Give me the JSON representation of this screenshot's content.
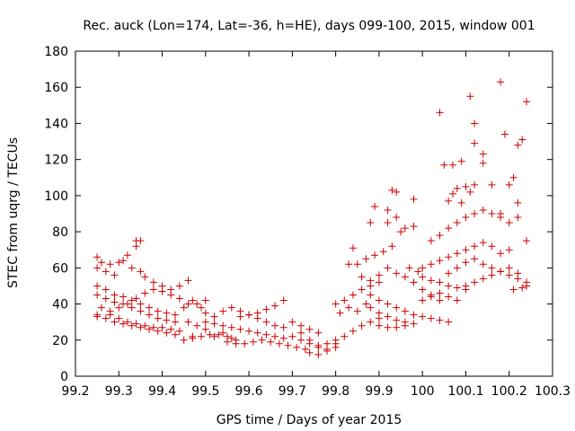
{
  "colors": {
    "series": "#cc0000",
    "axis": "#000000",
    "grid": "#999999"
  },
  "chart_data": {
    "type": "scatter",
    "title": "Rec. auck (Lon=174, Lat=-36, h=HE), days 099-100, 2015, window 001",
    "xlabel": "GPS time / Days of year 2015",
    "ylabel": "STEC from uqrg / TECUs",
    "xlim": [
      99.2,
      100.3
    ],
    "ylim": [
      0,
      180
    ],
    "xticks": [
      99.2,
      99.3,
      99.4,
      99.5,
      99.6,
      99.7,
      99.8,
      99.9,
      100,
      100.1,
      100.2,
      100.3
    ],
    "xtick_labels": [
      "99.2",
      "99.3",
      "99.4",
      "99.5",
      "99.6",
      "99.7",
      "99.8",
      "99.9",
      "100",
      "100.1",
      "100.2",
      "100.3"
    ],
    "yticks": [
      0,
      20,
      40,
      60,
      80,
      100,
      120,
      140,
      160,
      180
    ],
    "ytick_labels": [
      "0",
      "20",
      "40",
      "60",
      "80",
      "100",
      "120",
      "140",
      "160",
      "180"
    ],
    "grid": false,
    "marker": "+",
    "series": [
      {
        "points": [
          [
            99.25,
            66
          ],
          [
            99.26,
            63
          ],
          [
            99.28,
            62
          ],
          [
            99.3,
            63
          ],
          [
            99.31,
            64
          ],
          [
            99.32,
            67
          ],
          [
            99.34,
            75
          ],
          [
            99.35,
            75
          ],
          [
            99.34,
            72
          ],
          [
            99.25,
            60
          ],
          [
            99.27,
            58
          ],
          [
            99.29,
            56
          ],
          [
            99.33,
            60
          ],
          [
            99.35,
            58
          ],
          [
            99.36,
            55
          ],
          [
            99.38,
            52
          ],
          [
            99.4,
            50
          ],
          [
            99.42,
            48
          ],
          [
            99.44,
            50
          ],
          [
            99.46,
            53
          ],
          [
            99.25,
            50
          ],
          [
            99.27,
            48
          ],
          [
            99.29,
            45
          ],
          [
            99.31,
            44
          ],
          [
            99.33,
            42
          ],
          [
            99.35,
            40
          ],
          [
            99.37,
            38
          ],
          [
            99.39,
            36
          ],
          [
            99.41,
            35
          ],
          [
            99.43,
            34
          ],
          [
            99.25,
            45
          ],
          [
            99.27,
            43
          ],
          [
            99.29,
            41
          ],
          [
            99.31,
            40
          ],
          [
            99.33,
            38
          ],
          [
            99.35,
            36
          ],
          [
            99.37,
            34
          ],
          [
            99.39,
            32
          ],
          [
            99.41,
            31
          ],
          [
            99.43,
            30
          ],
          [
            99.25,
            33
          ],
          [
            99.27,
            32
          ],
          [
            99.29,
            30
          ],
          [
            99.31,
            29
          ],
          [
            99.33,
            28
          ],
          [
            99.35,
            27
          ],
          [
            99.37,
            26
          ],
          [
            99.39,
            25
          ],
          [
            99.41,
            24
          ],
          [
            99.43,
            23
          ],
          [
            99.25,
            34
          ],
          [
            99.28,
            36
          ],
          [
            99.3,
            38
          ],
          [
            99.32,
            40
          ],
          [
            99.34,
            43
          ],
          [
            99.36,
            46
          ],
          [
            99.38,
            48
          ],
          [
            99.4,
            47
          ],
          [
            99.42,
            45
          ],
          [
            99.44,
            43
          ],
          [
            99.26,
            38
          ],
          [
            99.28,
            34
          ],
          [
            99.3,
            32
          ],
          [
            99.32,
            30
          ],
          [
            99.34,
            29
          ],
          [
            99.36,
            28
          ],
          [
            99.38,
            27
          ],
          [
            99.4,
            27
          ],
          [
            99.42,
            26
          ],
          [
            99.44,
            25
          ],
          [
            99.45,
            38
          ],
          [
            99.46,
            40
          ],
          [
            99.47,
            42
          ],
          [
            99.48,
            40
          ],
          [
            99.49,
            38
          ],
          [
            99.5,
            42
          ],
          [
            99.46,
            30
          ],
          [
            99.48,
            28
          ],
          [
            99.5,
            26
          ],
          [
            99.47,
            22
          ],
          [
            99.45,
            20
          ],
          [
            99.47,
            21
          ],
          [
            99.49,
            22
          ],
          [
            99.51,
            23
          ],
          [
            99.52,
            22
          ],
          [
            99.53,
            23
          ],
          [
            99.54,
            24
          ],
          [
            99.55,
            22
          ],
          [
            99.56,
            21
          ],
          [
            99.57,
            20
          ],
          [
            99.5,
            35
          ],
          [
            99.52,
            33
          ],
          [
            99.54,
            36
          ],
          [
            99.56,
            38
          ],
          [
            99.58,
            36
          ],
          [
            99.6,
            34
          ],
          [
            99.62,
            32
          ],
          [
            99.64,
            30
          ],
          [
            99.66,
            28
          ],
          [
            99.68,
            27
          ],
          [
            99.5,
            30
          ],
          [
            99.52,
            29
          ],
          [
            99.54,
            28
          ],
          [
            99.56,
            27
          ],
          [
            99.58,
            26
          ],
          [
            99.6,
            25
          ],
          [
            99.62,
            24
          ],
          [
            99.64,
            23
          ],
          [
            99.66,
            22
          ],
          [
            99.68,
            21
          ],
          [
            99.55,
            19
          ],
          [
            99.57,
            18
          ],
          [
            99.59,
            18
          ],
          [
            99.61,
            19
          ],
          [
            99.63,
            20
          ],
          [
            99.65,
            19
          ],
          [
            99.67,
            18
          ],
          [
            99.69,
            17
          ],
          [
            99.71,
            16
          ],
          [
            99.73,
            15
          ],
          [
            99.58,
            33
          ],
          [
            99.6,
            34
          ],
          [
            99.62,
            35
          ],
          [
            99.64,
            37
          ],
          [
            99.66,
            39
          ],
          [
            99.68,
            42
          ],
          [
            99.7,
            30
          ],
          [
            99.72,
            28
          ],
          [
            99.74,
            26
          ],
          [
            99.76,
            24
          ],
          [
            99.7,
            22
          ],
          [
            99.72,
            20
          ],
          [
            99.74,
            18
          ],
          [
            99.76,
            16
          ],
          [
            99.78,
            15
          ],
          [
            99.8,
            16
          ],
          [
            99.74,
            13
          ],
          [
            99.76,
            12
          ],
          [
            99.78,
            14
          ],
          [
            99.8,
            18
          ],
          [
            99.72,
            24
          ],
          [
            99.74,
            20
          ],
          [
            99.76,
            17
          ],
          [
            99.78,
            18
          ],
          [
            99.8,
            20
          ],
          [
            99.82,
            22
          ],
          [
            99.84,
            25
          ],
          [
            99.86,
            28
          ],
          [
            99.88,
            30
          ],
          [
            99.9,
            32
          ],
          [
            99.8,
            40
          ],
          [
            99.82,
            42
          ],
          [
            99.84,
            45
          ],
          [
            99.86,
            48
          ],
          [
            99.88,
            50
          ],
          [
            99.9,
            52
          ],
          [
            99.81,
            35
          ],
          [
            99.83,
            38
          ],
          [
            99.85,
            36
          ],
          [
            99.87,
            40
          ],
          [
            99.83,
            62
          ],
          [
            99.85,
            62
          ],
          [
            99.87,
            65
          ],
          [
            99.89,
            67
          ],
          [
            99.91,
            69
          ],
          [
            99.93,
            72
          ],
          [
            99.84,
            71
          ],
          [
            99.88,
            85
          ],
          [
            99.89,
            94
          ],
          [
            99.92,
            92
          ],
          [
            99.92,
            85
          ],
          [
            99.94,
            88
          ],
          [
            99.96,
            82
          ],
          [
            99.98,
            83
          ],
          [
            99.95,
            80
          ],
          [
            99.93,
            103
          ],
          [
            99.94,
            102
          ],
          [
            99.98,
            98
          ],
          [
            99.97,
            60
          ],
          [
            99.99,
            58
          ],
          [
            99.86,
            55
          ],
          [
            99.88,
            53
          ],
          [
            99.9,
            56
          ],
          [
            99.92,
            60
          ],
          [
            99.94,
            57
          ],
          [
            99.96,
            55
          ],
          [
            99.98,
            52
          ],
          [
            100.0,
            48
          ],
          [
            100.02,
            45
          ],
          [
            100.04,
            42
          ],
          [
            99.88,
            45
          ],
          [
            99.9,
            42
          ],
          [
            99.92,
            40
          ],
          [
            99.94,
            38
          ],
          [
            99.96,
            36
          ],
          [
            99.98,
            34
          ],
          [
            100.0,
            33
          ],
          [
            100.02,
            32
          ],
          [
            100.04,
            31
          ],
          [
            100.06,
            30
          ],
          [
            99.88,
            38
          ],
          [
            99.9,
            35
          ],
          [
            99.92,
            33
          ],
          [
            99.94,
            31
          ],
          [
            99.96,
            30
          ],
          [
            99.98,
            29
          ],
          [
            99.9,
            28
          ],
          [
            99.92,
            27
          ],
          [
            99.94,
            27
          ],
          [
            99.96,
            28
          ],
          [
            100.0,
            60
          ],
          [
            100.02,
            62
          ],
          [
            100.04,
            64
          ],
          [
            100.06,
            66
          ],
          [
            100.08,
            68
          ],
          [
            100.1,
            70
          ],
          [
            100.12,
            72
          ],
          [
            100.14,
            74
          ],
          [
            100.16,
            72
          ],
          [
            100.18,
            68
          ],
          [
            100.0,
            55
          ],
          [
            100.02,
            53
          ],
          [
            100.04,
            52
          ],
          [
            100.06,
            50
          ],
          [
            100.08,
            49
          ],
          [
            100.1,
            50
          ],
          [
            100.12,
            52
          ],
          [
            100.14,
            54
          ],
          [
            100.16,
            56
          ],
          [
            100.18,
            58
          ],
          [
            100.02,
            75
          ],
          [
            100.04,
            78
          ],
          [
            100.06,
            82
          ],
          [
            100.08,
            85
          ],
          [
            100.1,
            88
          ],
          [
            100.12,
            90
          ],
          [
            100.14,
            92
          ],
          [
            100.16,
            90
          ],
          [
            100.18,
            88
          ],
          [
            100.2,
            85
          ],
          [
            100.04,
            146
          ],
          [
            100.05,
            117
          ],
          [
            100.07,
            117
          ],
          [
            100.09,
            119
          ],
          [
            100.11,
            155
          ],
          [
            100.12,
            140
          ],
          [
            100.12,
            129
          ],
          [
            100.14,
            123
          ],
          [
            100.14,
            118
          ],
          [
            100.18,
            163
          ],
          [
            100.19,
            134
          ],
          [
            100.21,
            110
          ],
          [
            100.22,
            128
          ],
          [
            100.23,
            131
          ],
          [
            100.24,
            152
          ],
          [
            100.24,
            75
          ],
          [
            100.22,
            96
          ],
          [
            100.2,
            106
          ],
          [
            100.22,
            88
          ],
          [
            100.24,
            50
          ],
          [
            100.08,
            104
          ],
          [
            100.1,
            105
          ],
          [
            100.11,
            102
          ],
          [
            100.12,
            106
          ],
          [
            100.09,
            96
          ],
          [
            100.06,
            97
          ],
          [
            100.07,
            101
          ],
          [
            100.16,
            106
          ],
          [
            100.18,
            90
          ],
          [
            100.2,
            70
          ],
          [
            100.06,
            57
          ],
          [
            100.08,
            60
          ],
          [
            100.1,
            63
          ],
          [
            100.12,
            65
          ],
          [
            100.14,
            62
          ],
          [
            100.16,
            60
          ],
          [
            100.18,
            58
          ],
          [
            100.2,
            56
          ],
          [
            100.22,
            54
          ],
          [
            100.24,
            52
          ],
          [
            100.0,
            42
          ],
          [
            100.02,
            44
          ],
          [
            100.04,
            46
          ],
          [
            100.06,
            44
          ],
          [
            100.08,
            42
          ],
          [
            100.1,
            48
          ],
          [
            100.2,
            60
          ],
          [
            100.22,
            57
          ],
          [
            100.23,
            49
          ],
          [
            100.21,
            48
          ]
        ]
      }
    ]
  }
}
